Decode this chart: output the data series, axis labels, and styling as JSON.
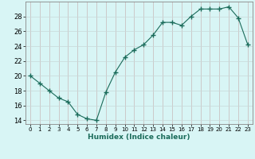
{
  "x": [
    0,
    1,
    2,
    3,
    4,
    5,
    6,
    7,
    8,
    9,
    10,
    11,
    12,
    13,
    14,
    15,
    16,
    17,
    18,
    19,
    20,
    21,
    22,
    23
  ],
  "y": [
    20,
    19,
    18,
    17,
    16.5,
    14.8,
    14.2,
    14,
    17.8,
    20.5,
    22.5,
    23.5,
    24.2,
    25.5,
    27.2,
    27.2,
    26.8,
    28,
    29,
    29,
    29,
    29.3,
    27.8,
    24.2
  ],
  "line_color": "#1a6b5a",
  "marker": "+",
  "marker_size": 4,
  "bg_color": "#d8f5f5",
  "grid_color_major": "#c8b8b8",
  "grid_color_minor": "#c8d8d8",
  "xlabel": "Humidex (Indice chaleur)",
  "xlim": [
    -0.5,
    23.5
  ],
  "ylim": [
    13.5,
    30.0
  ],
  "yticks": [
    14,
    16,
    18,
    20,
    22,
    24,
    26,
    28
  ],
  "xticks": [
    0,
    1,
    2,
    3,
    4,
    5,
    6,
    7,
    8,
    9,
    10,
    11,
    12,
    13,
    14,
    15,
    16,
    17,
    18,
    19,
    20,
    21,
    22,
    23
  ]
}
